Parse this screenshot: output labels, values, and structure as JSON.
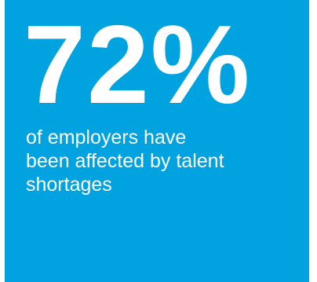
{
  "colors": {
    "background": "#00a3e0",
    "text": "#ffffff"
  },
  "stat": {
    "value": "72%"
  },
  "caption": {
    "lines": [
      "of employers have",
      "been affected by talent",
      "shortages"
    ]
  }
}
